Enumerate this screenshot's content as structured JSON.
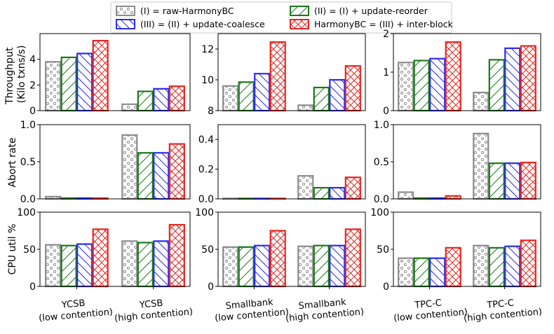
{
  "chart_data": {
    "type": "bar",
    "legend": {
      "placement": "top-center",
      "entries": [
        {
          "key": "I",
          "label": "(I) = raw-HarmonyBC",
          "color": "#8c8c8c",
          "pattern": "dots"
        },
        {
          "key": "II",
          "label": "(II) = (I) + update-reorder",
          "color": "#1a7a1a",
          "pattern": "diag"
        },
        {
          "key": "III",
          "label": "(III) = (II) + update-coalesce",
          "color": "#2b2bf0",
          "pattern": "backdiag"
        },
        {
          "key": "IV",
          "label": "HarmonyBC = (III) + inter-block",
          "color": "#e8251f",
          "pattern": "cross"
        }
      ]
    },
    "benchmarks": [
      "YCSB",
      "Smallbank",
      "TPC-C"
    ],
    "groups": [
      {
        "name": "YCSB",
        "line2": "(low contention)"
      },
      {
        "name": "YCSB",
        "line2": "(high contention)"
      },
      {
        "name": "Smallbank",
        "line2": "(low contention)"
      },
      {
        "name": "Smallbank",
        "line2": "(high contention)"
      },
      {
        "name": "TPC-C",
        "line2": "(low contention)"
      },
      {
        "name": "TPC-C",
        "line2": "(high contention)"
      }
    ],
    "rows": [
      {
        "metric": "throughput",
        "ylabel_lines": [
          "Throughput",
          "(Kilo txns/s)"
        ],
        "panels": [
          {
            "ylim": [
              0,
              6
            ],
            "ticks": [
              {
                "v": 0,
                "label": "0"
              },
              {
                "v": 2,
                "label": "2"
              },
              {
                "v": 4,
                "label": "4"
              }
            ],
            "values": [
              [
                3.8,
                4.15,
                4.45,
                5.45
              ],
              [
                0.5,
                1.5,
                1.7,
                1.9
              ]
            ]
          },
          {
            "ylim": [
              8,
              13
            ],
            "ticks": [
              {
                "v": 8,
                "label": "8"
              },
              {
                "v": 10,
                "label": "10"
              },
              {
                "v": 12,
                "label": "12"
              }
            ],
            "values": [
              [
                9.6,
                9.85,
                10.4,
                12.45
              ],
              [
                8.35,
                9.5,
                10.0,
                10.9
              ]
            ]
          },
          {
            "ylim": [
              0,
              2
            ],
            "ticks": [
              {
                "v": 0,
                "label": "0"
              },
              {
                "v": 1,
                "label": "1"
              },
              {
                "v": 2,
                "label": "2"
              }
            ],
            "values": [
              [
                1.25,
                1.3,
                1.35,
                1.78
              ],
              [
                0.47,
                1.32,
                1.62,
                1.68
              ]
            ]
          }
        ]
      },
      {
        "metric": "abort_rate",
        "ylabel_lines": [
          "Abort rate"
        ],
        "panels": [
          {
            "ylim": [
              0,
              1
            ],
            "ticks": [
              {
                "v": 0,
                "label": "0.0"
              },
              {
                "v": 0.5,
                "label": "0.5"
              },
              {
                "v": 1,
                "label": "1.0"
              }
            ],
            "values": [
              [
                0.03,
                0.01,
                0.01,
                0.01
              ],
              [
                0.86,
                0.62,
                0.62,
                0.74
              ]
            ]
          },
          {
            "ylim": [
              0,
              0.5
            ],
            "ticks": [
              {
                "v": 0,
                "label": "0.0"
              },
              {
                "v": 0.2,
                "label": "0.2"
              },
              {
                "v": 0.4,
                "label": "0.4"
              }
            ],
            "values": [
              [
                0.003,
                0.002,
                0.002,
                0.002
              ],
              [
                0.155,
                0.075,
                0.075,
                0.145
              ]
            ]
          },
          {
            "ylim": [
              0,
              1
            ],
            "ticks": [
              {
                "v": 0,
                "label": "0.0"
              },
              {
                "v": 0.5,
                "label": "0.5"
              },
              {
                "v": 1,
                "label": "1.0"
              }
            ],
            "values": [
              [
                0.09,
                0.01,
                0.01,
                0.04
              ],
              [
                0.88,
                0.48,
                0.48,
                0.49
              ]
            ]
          }
        ]
      },
      {
        "metric": "cpu_util",
        "ylabel_lines": [
          "CPU util %"
        ],
        "panels": [
          {
            "ylim": [
              0,
              100
            ],
            "ticks": [
              {
                "v": 0,
                "label": "0"
              },
              {
                "v": 50,
                "label": "50"
              },
              {
                "v": 100,
                "label": "100"
              }
            ],
            "values": [
              [
                56,
                55,
                57,
                77
              ],
              [
                61,
                59,
                61,
                83
              ]
            ]
          },
          {
            "ylim": [
              0,
              100
            ],
            "ticks": [
              {
                "v": 0,
                "label": "0"
              },
              {
                "v": 50,
                "label": "50"
              },
              {
                "v": 100,
                "label": "100"
              }
            ],
            "values": [
              [
                53,
                53,
                55,
                75
              ],
              [
                54,
                55,
                55,
                77
              ]
            ]
          },
          {
            "ylim": [
              0,
              100
            ],
            "ticks": [
              {
                "v": 0,
                "label": "0"
              },
              {
                "v": 50,
                "label": "50"
              },
              {
                "v": 100,
                "label": "100"
              }
            ],
            "values": [
              [
                38,
                38,
                38,
                52
              ],
              [
                55,
                52,
                54,
                62
              ]
            ]
          }
        ]
      }
    ]
  }
}
